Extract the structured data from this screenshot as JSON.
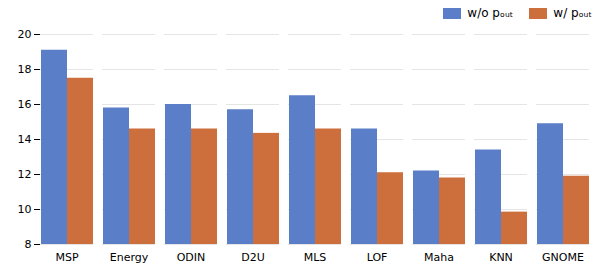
{
  "chart_data": {
    "type": "bar",
    "categories": [
      "MSP",
      "Energy",
      "ODIN",
      "D2U",
      "MLS",
      "LOF",
      "Maha",
      "KNN",
      "GNOME"
    ],
    "series": [
      {
        "name": "w/o pₒᵤₜ",
        "color": "#5B7EC9",
        "values": [
          19.1,
          15.8,
          16.0,
          15.7,
          16.5,
          14.6,
          12.2,
          13.4,
          14.9
        ]
      },
      {
        "name": "w/ pₒᵤₜ",
        "color": "#CC6F3C",
        "values": [
          17.5,
          14.6,
          14.6,
          14.35,
          14.6,
          12.1,
          11.8,
          9.85,
          11.9
        ]
      }
    ],
    "ylim": [
      8,
      20
    ],
    "yticks": [
      8,
      10,
      12,
      14,
      16,
      18,
      20
    ],
    "grid": true,
    "legend": "upper right"
  }
}
